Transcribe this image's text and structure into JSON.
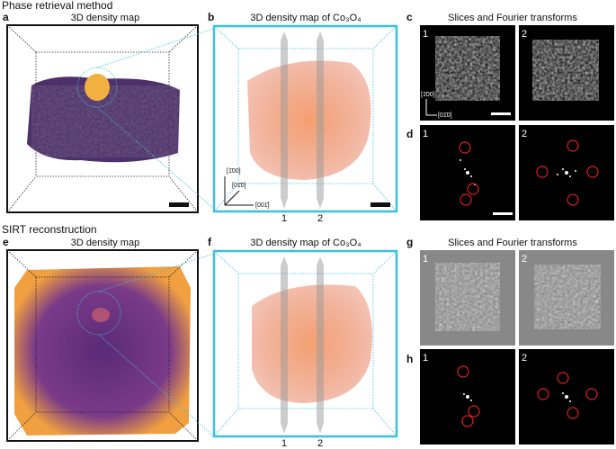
{
  "sections": [
    {
      "title": "Phase retrieval method",
      "panels": [
        {
          "letter": "a",
          "title": "3D density map"
        },
        {
          "letter": "b",
          "title": "3D density map of Co₃O₄",
          "labels": [
            "[1̄00]",
            "[01̄0]",
            "[001̄]",
            "1",
            "2"
          ]
        },
        {
          "letter": "c",
          "title": "Slices and Fourier transforms",
          "labels": [
            "1",
            "2",
            "[1̄00]",
            "[01̄0]"
          ]
        },
        {
          "letter": "d",
          "labels": [
            "1",
            "2"
          ]
        }
      ]
    },
    {
      "title": "SIRT reconstruction",
      "panels": [
        {
          "letter": "e",
          "title": "3D density map"
        },
        {
          "letter": "f",
          "title": "3D density map of Co₃O₄",
          "labels": [
            "1",
            "2"
          ]
        },
        {
          "letter": "g",
          "title": "Slices and Fourier transforms",
          "labels": [
            "1",
            "2"
          ]
        },
        {
          "letter": "h",
          "labels": [
            "1",
            "2"
          ]
        }
      ]
    }
  ]
}
